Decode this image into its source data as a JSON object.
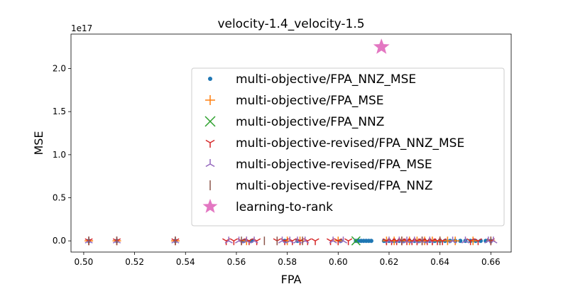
{
  "chart_data": {
    "type": "scatter",
    "title": "velocity-1.4_velocity-1.5",
    "xlabel": "FPA",
    "ylabel": "MSE",
    "y_offset_label": "1e17",
    "y_scale": 1e+17,
    "xlim": [
      0.495,
      0.668
    ],
    "ylim": [
      -0.13,
      2.4
    ],
    "x_ticks": [
      0.5,
      0.52,
      0.54,
      0.56,
      0.58,
      0.6,
      0.62,
      0.64,
      0.66
    ],
    "x_tick_labels": [
      "0.50",
      "0.52",
      "0.54",
      "0.56",
      "0.58",
      "0.60",
      "0.62",
      "0.64",
      "0.66"
    ],
    "y_ticks": [
      0.0,
      0.5,
      1.0,
      1.5,
      2.0
    ],
    "y_tick_labels": [
      "0.0",
      "0.5",
      "1.0",
      "1.5",
      "2.0"
    ],
    "grid": false,
    "legend_position": "center-right",
    "series": [
      {
        "name": "multi-objective/FPA_NNZ_MSE",
        "marker": "circle",
        "color": "#1f77b4",
        "points": [
          [
            0.502,
            0
          ],
          [
            0.513,
            0
          ],
          [
            0.536,
            0
          ],
          [
            0.563,
            0
          ],
          [
            0.566,
            0
          ],
          [
            0.579,
            0
          ],
          [
            0.584,
            0
          ],
          [
            0.601,
            0
          ],
          [
            0.607,
            0
          ],
          [
            0.608,
            0
          ],
          [
            0.609,
            0
          ],
          [
            0.61,
            0
          ],
          [
            0.611,
            0
          ],
          [
            0.612,
            0
          ],
          [
            0.613,
            0
          ],
          [
            0.618,
            0
          ],
          [
            0.62,
            0
          ],
          [
            0.622,
            0
          ],
          [
            0.624,
            0
          ],
          [
            0.626,
            0
          ],
          [
            0.628,
            0
          ],
          [
            0.63,
            0
          ],
          [
            0.632,
            0
          ],
          [
            0.634,
            0
          ],
          [
            0.636,
            0
          ],
          [
            0.638,
            0
          ],
          [
            0.64,
            0
          ],
          [
            0.642,
            0
          ],
          [
            0.644,
            0
          ],
          [
            0.646,
            0
          ],
          [
            0.648,
            0
          ],
          [
            0.65,
            0
          ],
          [
            0.652,
            0
          ],
          [
            0.654,
            0
          ],
          [
            0.656,
            0
          ],
          [
            0.658,
            0
          ],
          [
            0.66,
            0
          ]
        ]
      },
      {
        "name": "multi-objective/FPA_MSE",
        "marker": "plus",
        "color": "#ff7f0e",
        "points": [
          [
            0.502,
            0
          ],
          [
            0.513,
            0
          ],
          [
            0.536,
            0
          ],
          [
            0.564,
            0
          ],
          [
            0.58,
            0
          ],
          [
            0.585,
            0
          ],
          [
            0.6,
            0
          ],
          [
            0.619,
            0
          ],
          [
            0.622,
            0
          ],
          [
            0.625,
            0
          ],
          [
            0.628,
            0
          ],
          [
            0.631,
            0
          ],
          [
            0.634,
            0
          ],
          [
            0.637,
            0
          ],
          [
            0.64,
            0
          ],
          [
            0.643,
            0
          ],
          [
            0.646,
            0
          ],
          [
            0.653,
            0
          ],
          [
            0.66,
            0
          ]
        ]
      },
      {
        "name": "multi-objective/FPA_NNZ",
        "marker": "x",
        "color": "#2ca02c",
        "points": [
          [
            0.607,
            0
          ]
        ]
      },
      {
        "name": "multi-objective-revised/FPA_NNZ_MSE",
        "marker": "tri_down",
        "color": "#d62728",
        "points": [
          [
            0.502,
            0
          ],
          [
            0.513,
            0
          ],
          [
            0.536,
            0
          ],
          [
            0.556,
            0
          ],
          [
            0.559,
            0
          ],
          [
            0.562,
            0
          ],
          [
            0.565,
            0
          ],
          [
            0.568,
            0
          ],
          [
            0.576,
            0
          ],
          [
            0.579,
            0
          ],
          [
            0.582,
            0
          ],
          [
            0.585,
            0
          ],
          [
            0.588,
            0
          ],
          [
            0.591,
            0
          ],
          [
            0.597,
            0
          ],
          [
            0.6,
            0
          ],
          [
            0.604,
            0
          ],
          [
            0.619,
            0
          ],
          [
            0.621,
            0
          ],
          [
            0.623,
            0
          ],
          [
            0.625,
            0
          ],
          [
            0.627,
            0
          ],
          [
            0.629,
            0
          ],
          [
            0.631,
            0
          ],
          [
            0.633,
            0
          ],
          [
            0.635,
            0
          ],
          [
            0.637,
            0
          ],
          [
            0.639,
            0
          ],
          [
            0.641,
            0
          ],
          [
            0.652,
            0
          ],
          [
            0.655,
            0
          ],
          [
            0.66,
            0
          ]
        ]
      },
      {
        "name": "multi-objective-revised/FPA_MSE",
        "marker": "tri_up",
        "color": "#9467bd",
        "points": [
          [
            0.502,
            0
          ],
          [
            0.513,
            0
          ],
          [
            0.536,
            0
          ],
          [
            0.557,
            0
          ],
          [
            0.561,
            0
          ],
          [
            0.564,
            0
          ],
          [
            0.567,
            0
          ],
          [
            0.578,
            0
          ],
          [
            0.581,
            0
          ],
          [
            0.584,
            0
          ],
          [
            0.587,
            0
          ],
          [
            0.598,
            0
          ],
          [
            0.602,
            0
          ],
          [
            0.62,
            0
          ],
          [
            0.624,
            0
          ],
          [
            0.627,
            0
          ],
          [
            0.63,
            0
          ],
          [
            0.633,
            0
          ],
          [
            0.636,
            0
          ],
          [
            0.645,
            0
          ],
          [
            0.65,
            0
          ],
          [
            0.659,
            0
          ],
          [
            0.661,
            0
          ]
        ]
      },
      {
        "name": "multi-objective-revised/FPA_NNZ",
        "marker": "vline",
        "color": "#8c564b",
        "points": [
          [
            0.502,
            0
          ],
          [
            0.513,
            0
          ],
          [
            0.536,
            0
          ],
          [
            0.562,
            0
          ],
          [
            0.571,
            0
          ],
          [
            0.576,
            0
          ],
          [
            0.586,
            0
          ],
          [
            0.625,
            0
          ],
          [
            0.633,
            0
          ],
          [
            0.64,
            0
          ],
          [
            0.66,
            0
          ]
        ]
      },
      {
        "name": "learning-to-rank",
        "marker": "star",
        "color": "#e377c2",
        "points": [
          [
            0.617,
            2.25
          ]
        ]
      }
    ]
  }
}
